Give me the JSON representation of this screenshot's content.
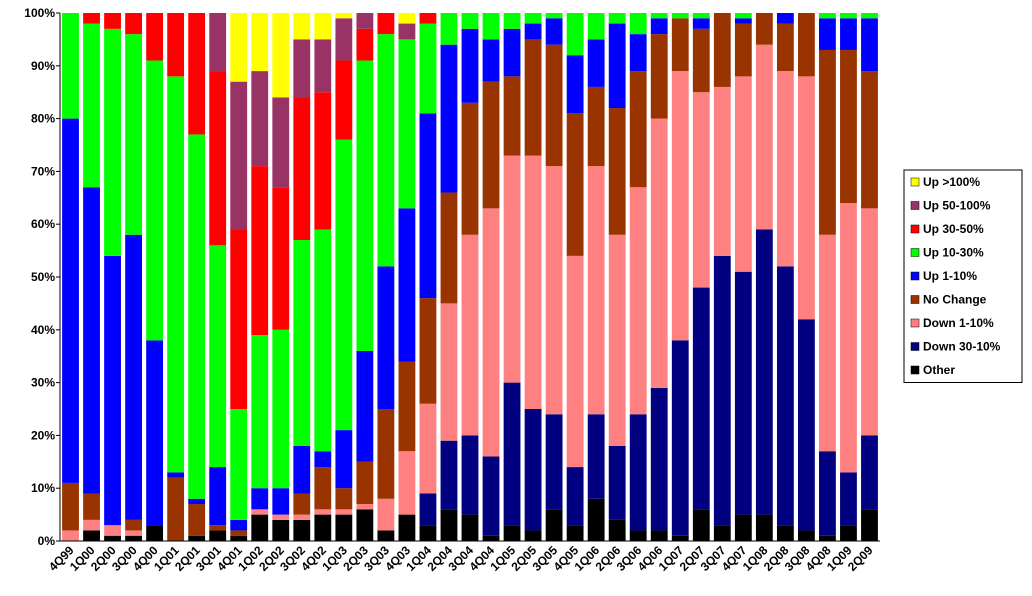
{
  "chart_data": {
    "type": "stacked_bar",
    "categories": [
      "4Q99",
      "1Q00",
      "2Q00",
      "3Q00",
      "4Q00",
      "1Q01",
      "2Q01",
      "3Q01",
      "4Q01",
      "1Q02",
      "2Q02",
      "3Q02",
      "4Q02",
      "1Q03",
      "2Q03",
      "3Q03",
      "4Q03",
      "1Q04",
      "2Q04",
      "3Q04",
      "4Q04",
      "1Q05",
      "2Q05",
      "3Q05",
      "4Q05",
      "1Q06",
      "2Q06",
      "3Q06",
      "4Q06",
      "1Q07",
      "2Q07",
      "3Q07",
      "4Q07",
      "1Q08",
      "2Q08",
      "3Q08",
      "4Q08",
      "1Q09",
      "2Q09"
    ],
    "series": [
      {
        "name": "Other",
        "color": "#000000",
        "values": [
          0,
          2,
          1,
          1,
          3,
          0,
          1,
          2,
          1,
          5,
          4,
          4,
          5,
          5,
          6,
          2,
          5,
          3,
          6,
          5,
          1,
          3,
          2,
          6,
          3,
          8,
          4,
          2,
          2,
          1,
          6,
          3,
          5,
          5,
          3,
          2,
          1,
          3,
          6
        ]
      },
      {
        "name": "Down 30-10%",
        "color": "#000080",
        "values": [
          0,
          0,
          0,
          0,
          0,
          0,
          0,
          0,
          0,
          0,
          0,
          0,
          0,
          0,
          0,
          0,
          0,
          6,
          13,
          15,
          15,
          27,
          23,
          18,
          11,
          16,
          14,
          22,
          27,
          37,
          42,
          51,
          46,
          54,
          49,
          40,
          16,
          10,
          14
        ]
      },
      {
        "name": "Down 1-10%",
        "color": "#ff8080",
        "values": [
          2,
          2,
          2,
          1,
          0,
          0,
          0,
          0,
          0,
          1,
          1,
          1,
          1,
          1,
          1,
          6,
          12,
          17,
          26,
          38,
          47,
          43,
          48,
          47,
          40,
          47,
          40,
          43,
          51,
          51,
          37,
          32,
          37,
          35,
          37,
          46,
          41,
          51,
          43
        ]
      },
      {
        "name": "No Change",
        "color": "#993300",
        "values": [
          9,
          5,
          0,
          2,
          0,
          12,
          6,
          1,
          1,
          0,
          0,
          4,
          8,
          4,
          8,
          17,
          17,
          20,
          21,
          25,
          24,
          15,
          22,
          23,
          27,
          15,
          24,
          22,
          16,
          10,
          12,
          14,
          10,
          6,
          9,
          12,
          35,
          29,
          26
        ]
      },
      {
        "name": "Up 1-10%",
        "color": "#0000ff",
        "values": [
          69,
          58,
          51,
          54,
          35,
          1,
          1,
          11,
          2,
          4,
          5,
          9,
          3,
          11,
          21,
          27,
          29,
          35,
          28,
          14,
          8,
          9,
          3,
          5,
          11,
          9,
          16,
          7,
          3,
          0,
          2,
          0,
          1,
          0,
          2,
          0,
          6,
          6,
          10
        ]
      },
      {
        "name": "Up 10-30%",
        "color": "#00ff00",
        "values": [
          20,
          31,
          43,
          38,
          53,
          75,
          69,
          42,
          21,
          29,
          30,
          39,
          42,
          55,
          55,
          44,
          32,
          17,
          6,
          3,
          5,
          3,
          2,
          1,
          8,
          5,
          2,
          4,
          1,
          1,
          1,
          0,
          1,
          0,
          0,
          0,
          1,
          1,
          1
        ]
      },
      {
        "name": "Up 30-50%",
        "color": "#ff0000",
        "values": [
          0,
          2,
          3,
          4,
          9,
          12,
          23,
          33,
          34,
          32,
          27,
          27,
          26,
          15,
          6,
          4,
          0,
          2,
          0,
          0,
          0,
          0,
          0,
          0,
          0,
          0,
          0,
          0,
          0,
          0,
          0,
          0,
          0,
          0,
          0,
          0,
          0,
          0,
          0
        ]
      },
      {
        "name": "Up 50-100%",
        "color": "#993366",
        "values": [
          0,
          0,
          0,
          0,
          0,
          0,
          0,
          11,
          28,
          18,
          17,
          11,
          10,
          8,
          3,
          0,
          3,
          0,
          0,
          0,
          0,
          0,
          0,
          0,
          0,
          0,
          0,
          0,
          0,
          0,
          0,
          0,
          0,
          0,
          0,
          0,
          0,
          0,
          0
        ]
      },
      {
        "name": "Up >100%",
        "color": "#ffff00",
        "values": [
          0,
          0,
          0,
          0,
          0,
          0,
          0,
          0,
          13,
          11,
          16,
          5,
          5,
          1,
          0,
          0,
          2,
          0,
          0,
          0,
          0,
          0,
          0,
          0,
          0,
          0,
          0,
          0,
          0,
          0,
          0,
          0,
          0,
          0,
          0,
          0,
          0,
          0,
          0
        ]
      }
    ],
    "ylim": [
      0,
      100
    ],
    "yticks": [
      {
        "value": 0,
        "label": "0%"
      },
      {
        "value": 10,
        "label": "10%"
      },
      {
        "value": 20,
        "label": "20%"
      },
      {
        "value": 30,
        "label": "30%"
      },
      {
        "value": 40,
        "label": "40%"
      },
      {
        "value": 50,
        "label": "50%"
      },
      {
        "value": 60,
        "label": "60%"
      },
      {
        "value": 70,
        "label": "70%"
      },
      {
        "value": 80,
        "label": "80%"
      },
      {
        "value": 90,
        "label": "90%"
      },
      {
        "value": 100,
        "label": "100%"
      }
    ],
    "legend": "right"
  }
}
